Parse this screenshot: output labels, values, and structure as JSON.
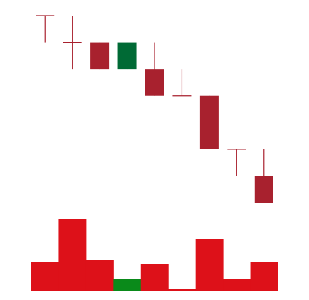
{
  "chart_data": {
    "type": "candlestick",
    "categories": [
      null,
      null,
      null,
      null,
      null,
      null,
      null,
      null,
      null
    ],
    "open": [
      100,
      90,
      90,
      80,
      80,
      70,
      70,
      50,
      40
    ],
    "high": [
      100,
      100,
      90,
      90,
      90,
      80,
      70,
      50,
      50
    ],
    "low": [
      90,
      80,
      80,
      80,
      70,
      70,
      50,
      40,
      30
    ],
    "close": [
      100,
      90,
      80,
      90,
      70,
      70,
      50,
      50,
      30
    ],
    "volume": [
      41,
      102,
      44,
      18,
      39,
      4,
      74,
      18,
      42
    ],
    "ylim": [
      30,
      100
    ],
    "volume_ylim": [
      0,
      102
    ],
    "up_color": "#006a35",
    "down_color": "#a8212e",
    "volume_up_color": "#0a8a1a",
    "volume_down_color": "#dd1119"
  }
}
